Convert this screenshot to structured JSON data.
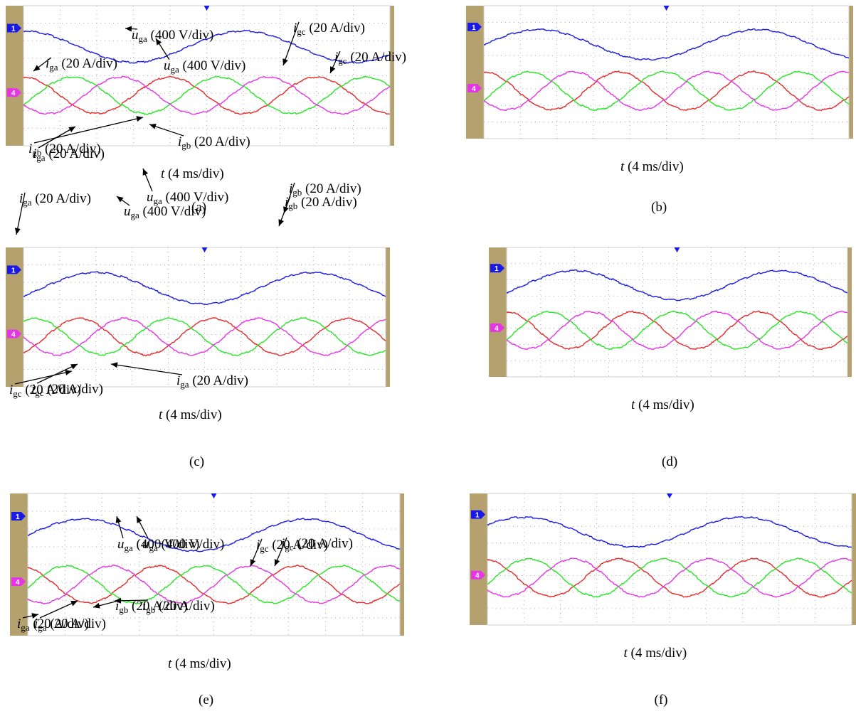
{
  "colors": {
    "bezel": "#b5a16d",
    "u_ga": "#1a1ae6",
    "i_a": "#e62a2a",
    "i_b": "#26e626",
    "i_c": "#e635e6",
    "grid": "#9a9a9a"
  },
  "channels": {
    "ch1": "1",
    "ch4": "4"
  },
  "chart_data": [
    {
      "caption": "(a)",
      "type": "line",
      "xlabel": {
        "var": "t",
        "unit": " (4 ms/div)"
      },
      "series": [
        {
          "name": "u_ga",
          "amplitude_div": 1.0,
          "period_div": 6.0,
          "phase_deg": 90,
          "offset_div": 1.0
        },
        {
          "name": "i_a",
          "amplitude_div": 1.1,
          "period_div": 4.0,
          "phase_deg": 90,
          "offset_div": 0
        },
        {
          "name": "i_b",
          "amplitude_div": 1.1,
          "period_div": 4.0,
          "phase_deg": -30,
          "offset_div": 0
        },
        {
          "name": "i_c",
          "amplitude_div": 1.1,
          "period_div": 4.0,
          "phase_deg": 210,
          "offset_div": 0
        }
      ],
      "labels": [
        {
          "var": "u",
          "sub": "ga",
          "unit": " (400 V/div)"
        },
        {
          "var": "i",
          "sub": "gc",
          "unit": " (20 A/div)"
        },
        {
          "var": "i",
          "sub": "ga",
          "unit": " (20 A/div)"
        },
        {
          "var": "i",
          "sub": "gb",
          "unit": " (20 A/div)"
        }
      ]
    },
    {
      "caption": "(b)",
      "type": "line",
      "xlabel": {
        "var": "t",
        "unit": " (4 ms/div)"
      },
      "series": [
        {
          "name": "u_ga",
          "amplitude_div": 1.0,
          "period_div": 6.0,
          "phase_deg": 0,
          "offset_div": 1.0
        },
        {
          "name": "i_a",
          "amplitude_div": 1.2,
          "period_div": 3.7,
          "phase_deg": 90,
          "offset_div": 0
        },
        {
          "name": "i_b",
          "amplitude_div": 1.2,
          "period_div": 3.7,
          "phase_deg": -30,
          "offset_div": 0
        },
        {
          "name": "i_c",
          "amplitude_div": 1.2,
          "period_div": 3.7,
          "phase_deg": 210,
          "offset_div": 0
        }
      ],
      "labels": [
        {
          "var": "i",
          "sub": "ga",
          "unit": " (20 A/div)"
        },
        {
          "var": "u",
          "sub": "ga",
          "unit": " (400 V/div)"
        },
        {
          "var": "i",
          "sub": "gc",
          "unit": " (20 A/div)"
        },
        {
          "var": "i",
          "sub": "gb",
          "unit": " (20 A/div)"
        }
      ]
    },
    {
      "caption": "(c)",
      "type": "line",
      "xlabel": {
        "var": "t",
        "unit": " (4 ms/div)"
      },
      "series": [
        {
          "name": "u_ga",
          "amplitude_div": 1.0,
          "period_div": 6.0,
          "phase_deg": -30,
          "offset_div": 1.0
        },
        {
          "name": "i_a",
          "amplitude_div": 1.1,
          "period_div": 3.7,
          "phase_deg": -60,
          "offset_div": 0
        },
        {
          "name": "i_b",
          "amplitude_div": 1.1,
          "period_div": 3.7,
          "phase_deg": 60,
          "offset_div": 0
        },
        {
          "name": "i_c",
          "amplitude_div": 1.1,
          "period_div": 3.7,
          "phase_deg": 180,
          "offset_div": 0
        }
      ],
      "labels": [
        {
          "var": "u",
          "sub": "ga",
          "unit": " (400 V/div)"
        },
        {
          "var": "i",
          "sub": "gb",
          "unit": " (20 A/div)"
        },
        {
          "var": "i",
          "sub": "gc",
          "unit": " (20 A/div)"
        },
        {
          "var": "i",
          "sub": "ga",
          "unit": " (20 A/div)"
        }
      ]
    },
    {
      "caption": "(d)",
      "type": "line",
      "xlabel": {
        "var": "t",
        "unit": " (4 ms/div)"
      },
      "series": [
        {
          "name": "u_ga",
          "amplitude_div": 1.0,
          "period_div": 6.0,
          "phase_deg": -30,
          "offset_div": 1.0
        },
        {
          "name": "i_a",
          "amplitude_div": 1.2,
          "period_div": 3.7,
          "phase_deg": 90,
          "offset_div": 0
        },
        {
          "name": "i_b",
          "amplitude_div": 1.2,
          "period_div": 3.7,
          "phase_deg": -30,
          "offset_div": 0
        },
        {
          "name": "i_c",
          "amplitude_div": 1.2,
          "period_div": 3.7,
          "phase_deg": 210,
          "offset_div": 0
        }
      ],
      "labels": [
        {
          "var": "i",
          "sub": "ga",
          "unit": " (20 A/div)"
        },
        {
          "var": "u",
          "sub": "ga",
          "unit": " (400 V/div)"
        },
        {
          "var": "i",
          "sub": "gb",
          "unit": " (20 A/div)"
        },
        {
          "var": "i",
          "sub": "gc",
          "unit": " (20 A/div)"
        }
      ]
    },
    {
      "caption": "(e)",
      "type": "line",
      "xlabel": {
        "var": "t",
        "unit": " (4 ms/div)"
      },
      "series": [
        {
          "name": "u_ga",
          "amplitude_div": 1.0,
          "period_div": 6.0,
          "phase_deg": 0,
          "offset_div": 1.0
        },
        {
          "name": "i_a",
          "amplitude_div": 1.1,
          "period_div": 3.7,
          "phase_deg": 110,
          "offset_div": 0
        },
        {
          "name": "i_b",
          "amplitude_div": 1.1,
          "period_div": 3.7,
          "phase_deg": -10,
          "offset_div": 0
        },
        {
          "name": "i_c",
          "amplitude_div": 1.1,
          "period_div": 3.7,
          "phase_deg": 230,
          "offset_div": 0
        }
      ],
      "labels": [
        {
          "var": "u",
          "sub": "ga",
          "unit": " (400 V/div)"
        },
        {
          "var": "i",
          "sub": "gc",
          "unit": " (20 A/div)"
        },
        {
          "var": "i",
          "sub": "ga",
          "unit": " (20 A/div)"
        },
        {
          "var": "i",
          "sub": "gb",
          "unit": " (20 A/div)"
        }
      ]
    },
    {
      "caption": "(f)",
      "type": "line",
      "xlabel": {
        "var": "t",
        "unit": " (4 ms/div)"
      },
      "series": [
        {
          "name": "u_ga",
          "amplitude_div": 1.0,
          "period_div": 6.0,
          "phase_deg": 30,
          "offset_div": 1.0
        },
        {
          "name": "i_a",
          "amplitude_div": 1.2,
          "period_div": 3.7,
          "phase_deg": 100,
          "offset_div": 0
        },
        {
          "name": "i_b",
          "amplitude_div": 1.2,
          "period_div": 3.7,
          "phase_deg": -20,
          "offset_div": 0
        },
        {
          "name": "i_c",
          "amplitude_div": 1.2,
          "period_div": 3.7,
          "phase_deg": 220,
          "offset_div": 0
        }
      ],
      "labels": [
        {
          "var": "u",
          "sub": "ga",
          "unit": " (400 V/div)"
        },
        {
          "var": "i",
          "sub": "gc",
          "unit": " (20 A/div)"
        },
        {
          "var": "i",
          "sub": "ga",
          "unit": " (20 A/div)"
        },
        {
          "var": "i",
          "sub": "gb",
          "unit": " (20 A/div)"
        }
      ]
    }
  ]
}
